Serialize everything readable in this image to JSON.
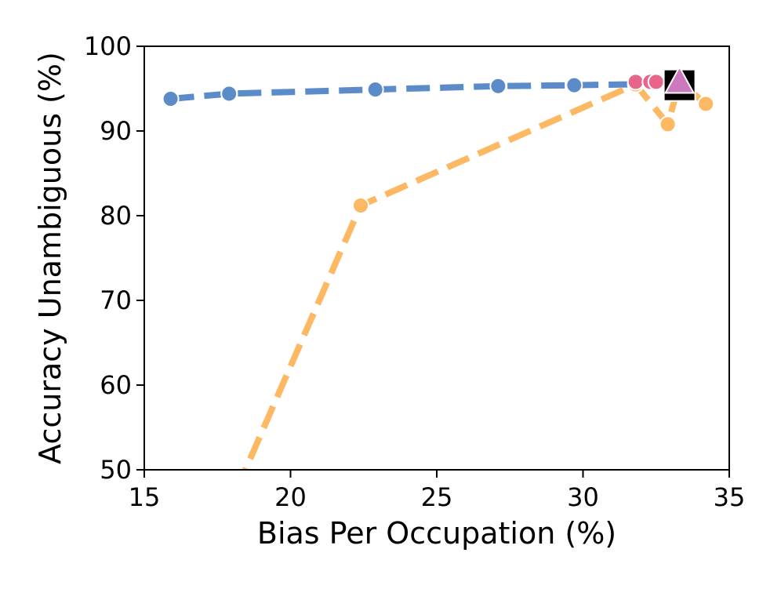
{
  "chart_data": {
    "type": "line",
    "title": "",
    "xlabel": "Bias Per Occupation (%)",
    "ylabel": "Accuracy Unambiguous (%)",
    "xlim": [
      15,
      35
    ],
    "ylim": [
      50,
      100
    ],
    "xticks": [
      15,
      20,
      25,
      30,
      35
    ],
    "yticks": [
      50,
      60,
      70,
      80,
      90,
      100
    ],
    "grid": false,
    "legend": "none",
    "series": [
      {
        "color": "#5b8bc9",
        "line_style": "dashed",
        "marker": "circle",
        "points": [
          {
            "x": 15.9,
            "y": 93.8
          },
          {
            "x": 17.9,
            "y": 94.4
          },
          {
            "x": 22.9,
            "y": 94.9
          },
          {
            "x": 27.1,
            "y": 95.3
          },
          {
            "x": 29.7,
            "y": 95.4
          },
          {
            "x": 33.2,
            "y": 95.6
          }
        ]
      },
      {
        "color": "#fdb863",
        "line_style": "dashed",
        "marker": "circle",
        "points": [
          {
            "x": 17.7,
            "y": 44.0
          },
          {
            "x": 22.4,
            "y": 81.2
          },
          {
            "x": 31.8,
            "y": 95.5
          },
          {
            "x": 32.9,
            "y": 90.8
          },
          {
            "x": 33.3,
            "y": 95.8
          },
          {
            "x": 34.2,
            "y": 93.2
          }
        ]
      },
      {
        "color": "#e7648a",
        "line_style": "none",
        "marker": "circle",
        "points": [
          {
            "x": 31.8,
            "y": 95.8
          },
          {
            "x": 32.3,
            "y": 95.8
          },
          {
            "x": 32.5,
            "y": 95.8
          },
          {
            "x": 33.2,
            "y": 95.8
          }
        ]
      },
      {
        "color": "#000000",
        "line_style": "none",
        "marker": "square",
        "points": [
          {
            "x": 33.3,
            "y": 95.4
          }
        ]
      },
      {
        "color": "#cc79c0",
        "line_style": "none",
        "marker": "triangle",
        "points": [
          {
            "x": 33.3,
            "y": 95.7
          }
        ]
      }
    ]
  }
}
